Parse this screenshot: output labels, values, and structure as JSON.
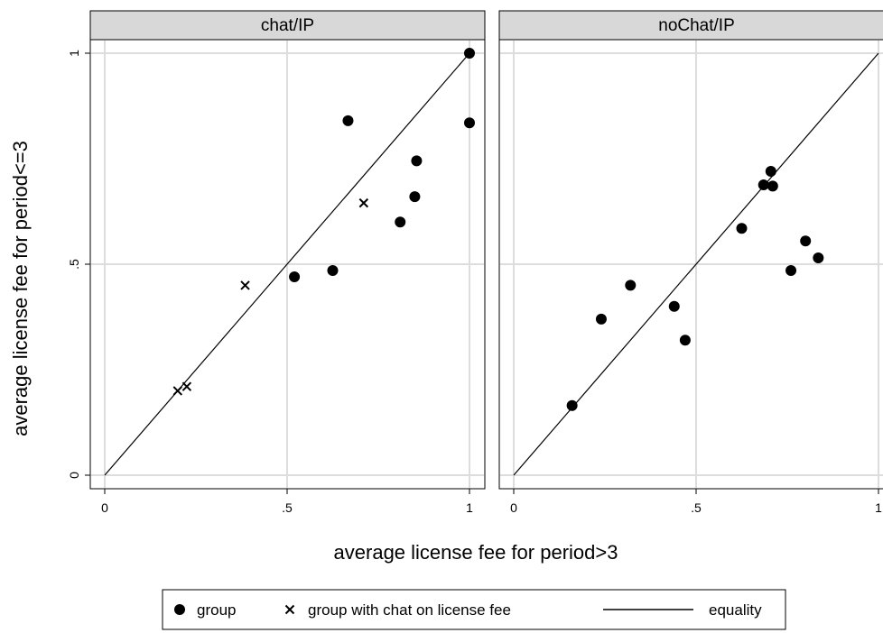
{
  "chart_data": {
    "type": "scatter",
    "xlabel": "average license fee for period>3",
    "ylabel": "average license fee for period<=3",
    "xlim": [
      0,
      1
    ],
    "ylim": [
      0,
      1
    ],
    "x_ticks": [
      {
        "v": 0,
        "label": "0"
      },
      {
        "v": 0.5,
        "label": ".5"
      },
      {
        "v": 1,
        "label": "1"
      }
    ],
    "y_ticks": [
      {
        "v": 0,
        "label": "0"
      },
      {
        "v": 0.5,
        "label": ".5"
      },
      {
        "v": 1,
        "label": "1"
      }
    ],
    "grid": true,
    "legend_position": "bottom",
    "legend": [
      {
        "label": "group",
        "marker": "circle"
      },
      {
        "label": "group with chat on license fee",
        "marker": "x"
      },
      {
        "label": "equality",
        "marker": "line"
      }
    ],
    "panels": [
      {
        "title": "chat/IP",
        "group": [
          {
            "x": 0.52,
            "y": 0.47
          },
          {
            "x": 0.625,
            "y": 0.485
          },
          {
            "x": 0.667,
            "y": 0.84
          },
          {
            "x": 0.81,
            "y": 0.6
          },
          {
            "x": 0.85,
            "y": 0.66
          },
          {
            "x": 0.855,
            "y": 0.745
          },
          {
            "x": 1.0,
            "y": 1.0
          },
          {
            "x": 1.0,
            "y": 0.835
          }
        ],
        "group_with_chat": [
          {
            "x": 0.2,
            "y": 0.2
          },
          {
            "x": 0.225,
            "y": 0.21
          },
          {
            "x": 0.385,
            "y": 0.45
          },
          {
            "x": 0.71,
            "y": 0.645
          }
        ]
      },
      {
        "title": "noChat/IP",
        "group": [
          {
            "x": 0.16,
            "y": 0.165
          },
          {
            "x": 0.24,
            "y": 0.37
          },
          {
            "x": 0.32,
            "y": 0.45
          },
          {
            "x": 0.44,
            "y": 0.4
          },
          {
            "x": 0.47,
            "y": 0.32
          },
          {
            "x": 0.625,
            "y": 0.585
          },
          {
            "x": 0.685,
            "y": 0.688
          },
          {
            "x": 0.705,
            "y": 0.72
          },
          {
            "x": 0.71,
            "y": 0.685
          },
          {
            "x": 0.76,
            "y": 0.485
          },
          {
            "x": 0.8,
            "y": 0.555
          },
          {
            "x": 0.835,
            "y": 0.515
          }
        ],
        "group_with_chat": []
      }
    ],
    "colors": {
      "marker": "#000000",
      "grid": "#dddddd",
      "strip": "#d8d8d8",
      "frame": "#000000"
    }
  }
}
